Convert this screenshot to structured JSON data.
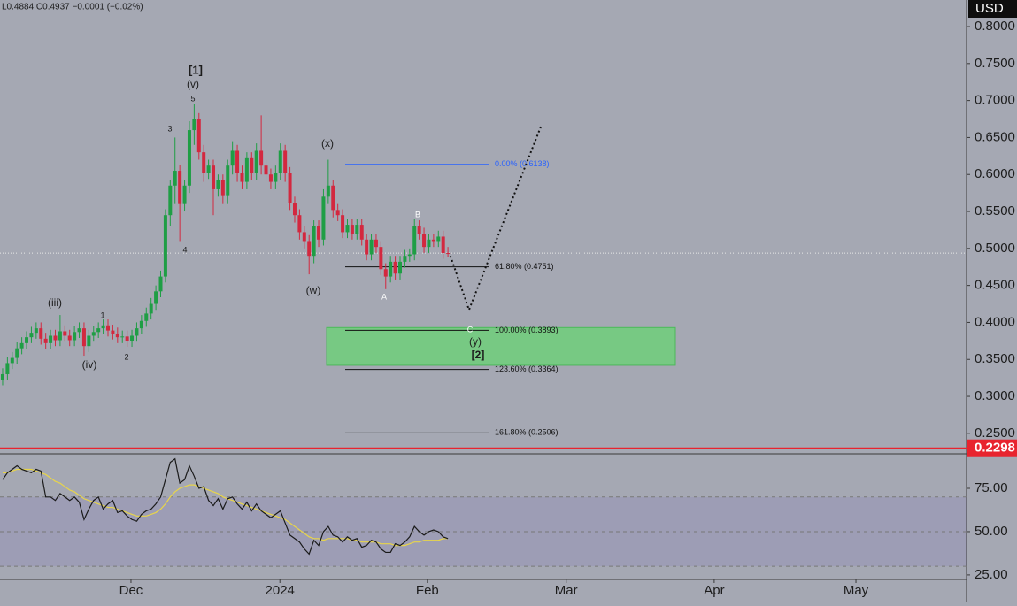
{
  "chart_data": {
    "type": "candlestick",
    "header": "L0.4884  C0.4937  −0.0001 (−0.02%)",
    "currency": "USD",
    "up_color": "#1f9e45",
    "down_color": "#d3283f",
    "xlim": [
      -0.55,
      201.3
    ],
    "xticks": [
      {
        "value": 26.8,
        "label": "Dec"
      },
      {
        "value": 57.9,
        "label": "2024"
      },
      {
        "value": 88.7,
        "label": "Feb"
      },
      {
        "value": 117.7,
        "label": "Mar"
      },
      {
        "value": 148.6,
        "label": "Apr"
      },
      {
        "value": 178.2,
        "label": "May"
      }
    ],
    "ylim": [
      0.2235,
      0.8359
    ],
    "yticks": [
      {
        "value": 0.8,
        "label": "0.8000"
      },
      {
        "value": 0.75,
        "label": "0.7500"
      },
      {
        "value": 0.7,
        "label": "0.7000"
      },
      {
        "value": 0.65,
        "label": "0.6500"
      },
      {
        "value": 0.6,
        "label": "0.6000"
      },
      {
        "value": 0.55,
        "label": "0.5500"
      },
      {
        "value": 0.5,
        "label": "0.5000"
      },
      {
        "value": 0.45,
        "label": "0.4500"
      },
      {
        "value": 0.4,
        "label": "0.4000"
      },
      {
        "value": 0.35,
        "label": "0.3500"
      },
      {
        "value": 0.3,
        "label": "0.3000"
      },
      {
        "value": 0.25,
        "label": "0.2500"
      }
    ],
    "open": [
      0.322,
      0.33,
      0.345,
      0.352,
      0.365,
      0.372,
      0.38,
      0.386,
      0.392,
      0.378,
      0.372,
      0.382,
      0.376,
      0.388,
      0.382,
      0.376,
      0.387,
      0.392,
      0.368,
      0.382,
      0.387,
      0.392,
      0.396,
      0.389,
      0.385,
      0.38,
      0.381,
      0.375,
      0.382,
      0.392,
      0.402,
      0.412,
      0.425,
      0.442,
      0.462,
      0.545,
      0.585,
      0.605,
      0.56,
      0.585,
      0.66,
      0.675,
      0.63,
      0.602,
      0.612,
      0.58,
      0.592,
      0.572,
      0.612,
      0.632,
      0.602,
      0.59,
      0.622,
      0.602,
      0.632,
      0.612,
      0.6,
      0.59,
      0.602,
      0.632,
      0.602,
      0.562,
      0.545,
      0.522,
      0.51,
      0.49,
      0.53,
      0.512,
      0.57,
      0.585,
      0.552,
      0.545,
      0.522,
      0.532,
      0.52,
      0.532,
      0.512,
      0.492,
      0.512,
      0.502,
      0.472,
      0.462,
      0.482,
      0.466,
      0.482,
      0.49,
      0.492,
      0.53,
      0.52,
      0.502,
      0.512,
      0.51,
      0.516,
      0.4938
    ],
    "high": [
      0.338,
      0.353,
      0.36,
      0.373,
      0.38,
      0.388,
      0.394,
      0.4,
      0.4,
      0.386,
      0.39,
      0.39,
      0.41,
      0.396,
      0.39,
      0.395,
      0.4,
      0.4,
      0.39,
      0.395,
      0.4,
      0.404,
      0.404,
      0.397,
      0.393,
      0.389,
      0.389,
      0.39,
      0.4,
      0.41,
      0.42,
      0.433,
      0.45,
      0.47,
      0.553,
      0.593,
      0.65,
      0.613,
      0.593,
      0.672,
      0.695,
      0.683,
      0.64,
      0.62,
      0.62,
      0.6,
      0.6,
      0.62,
      0.645,
      0.64,
      0.612,
      0.63,
      0.63,
      0.642,
      0.68,
      0.62,
      0.608,
      0.612,
      0.642,
      0.64,
      0.61,
      0.57,
      0.553,
      0.53,
      0.518,
      0.538,
      0.538,
      0.58,
      0.62,
      0.593,
      0.56,
      0.553,
      0.54,
      0.54,
      0.54,
      0.54,
      0.52,
      0.52,
      0.52,
      0.51,
      0.48,
      0.49,
      0.49,
      0.49,
      0.498,
      0.5,
      0.54,
      0.538,
      0.528,
      0.52,
      0.52,
      0.524,
      0.524,
      0.502
    ],
    "low": [
      0.315,
      0.322,
      0.337,
      0.344,
      0.357,
      0.364,
      0.372,
      0.378,
      0.37,
      0.364,
      0.364,
      0.368,
      0.368,
      0.374,
      0.368,
      0.368,
      0.379,
      0.355,
      0.36,
      0.374,
      0.379,
      0.384,
      0.381,
      0.377,
      0.372,
      0.372,
      0.367,
      0.367,
      0.374,
      0.384,
      0.394,
      0.404,
      0.417,
      0.434,
      0.454,
      0.53,
      0.56,
      0.51,
      0.55,
      0.575,
      0.64,
      0.62,
      0.59,
      0.594,
      0.545,
      0.57,
      0.56,
      0.56,
      0.6,
      0.59,
      0.58,
      0.58,
      0.592,
      0.592,
      0.6,
      0.59,
      0.58,
      0.58,
      0.592,
      0.59,
      0.552,
      0.535,
      0.512,
      0.5,
      0.465,
      0.48,
      0.502,
      0.504,
      0.56,
      0.542,
      0.537,
      0.514,
      0.514,
      0.512,
      0.512,
      0.504,
      0.484,
      0.484,
      0.494,
      0.464,
      0.445,
      0.454,
      0.458,
      0.458,
      0.474,
      0.482,
      0.484,
      0.512,
      0.494,
      0.494,
      0.502,
      0.502,
      0.486,
      0.4884
    ],
    "close": [
      0.33,
      0.345,
      0.352,
      0.365,
      0.372,
      0.38,
      0.386,
      0.392,
      0.378,
      0.372,
      0.382,
      0.376,
      0.388,
      0.382,
      0.376,
      0.387,
      0.392,
      0.368,
      0.382,
      0.387,
      0.392,
      0.396,
      0.389,
      0.385,
      0.38,
      0.381,
      0.375,
      0.382,
      0.392,
      0.402,
      0.412,
      0.425,
      0.442,
      0.462,
      0.545,
      0.585,
      0.605,
      0.56,
      0.585,
      0.66,
      0.675,
      0.63,
      0.602,
      0.612,
      0.58,
      0.592,
      0.572,
      0.612,
      0.632,
      0.602,
      0.59,
      0.622,
      0.602,
      0.632,
      0.612,
      0.6,
      0.59,
      0.602,
      0.632,
      0.602,
      0.562,
      0.545,
      0.522,
      0.51,
      0.49,
      0.53,
      0.512,
      0.57,
      0.585,
      0.552,
      0.545,
      0.522,
      0.532,
      0.52,
      0.532,
      0.512,
      0.492,
      0.512,
      0.502,
      0.472,
      0.462,
      0.482,
      0.466,
      0.482,
      0.49,
      0.492,
      0.53,
      0.52,
      0.502,
      0.512,
      0.51,
      0.516,
      0.4938,
      0.4937
    ],
    "alert_line": 0.2298,
    "alert_color": "#e8242f",
    "fib": [
      {
        "label": "0.00% (0.6138)",
        "value": 0.6138,
        "color": "#2962ff"
      },
      {
        "label": "61.80% (0.4751)",
        "value": 0.4751,
        "color": "#111111"
      },
      {
        "label": "100.00% (0.3893)",
        "value": 0.3893,
        "color": "#111111"
      },
      {
        "label": "123.60% (0.3364)",
        "value": 0.3364,
        "color": "#111111"
      },
      {
        "label": "161.80% (0.2506)",
        "value": 0.2506,
        "color": "#111111"
      }
    ],
    "zone": {
      "ylim": [
        0.342,
        0.393
      ],
      "color": "#6fcf7a"
    },
    "projection": {
      "x": [
        93.5,
        97.4,
        112.6
      ],
      "y": [
        0.49,
        0.417,
        0.668
      ]
    },
    "annotations": [
      "[1]",
      "(v)",
      "5",
      "3",
      "4",
      "(iii)",
      "1",
      "(iv)",
      "2",
      "(x)",
      "(w)",
      "B",
      "A",
      "C",
      "(y)",
      "[2]"
    ],
    "rsi": {
      "ylim": [
        22.4,
        93.9
      ],
      "yticks": [
        {
          "value": 75,
          "label": "75.00"
        },
        {
          "value": 50,
          "label": "50.00"
        },
        {
          "value": 25,
          "label": "25.00"
        }
      ],
      "bands": [
        70,
        50,
        30
      ],
      "color": "#1a1a1a",
      "ma_color": "#e8d54a",
      "values": [
        80,
        84,
        86,
        88,
        86,
        85,
        84,
        86,
        85,
        70,
        70,
        68,
        72,
        70,
        68,
        70,
        67,
        57,
        63,
        68,
        70,
        63,
        66,
        68,
        61,
        62,
        59,
        57,
        56,
        60,
        62,
        63,
        66,
        70,
        80,
        90,
        92,
        78,
        80,
        88,
        82,
        75,
        76,
        68,
        65,
        69,
        63,
        69,
        70,
        66,
        63,
        67,
        62,
        66,
        62,
        60,
        58,
        60,
        62,
        55,
        48,
        46,
        44,
        40,
        37,
        45,
        42,
        50,
        53,
        48,
        47,
        44,
        47,
        45,
        46,
        41,
        42,
        45,
        44,
        40,
        38,
        38,
        43,
        42,
        44,
        47,
        53,
        50,
        48,
        50,
        51,
        50,
        47,
        46
      ],
      "ma": [
        84,
        84,
        85,
        86,
        86,
        86,
        86,
        85,
        84,
        83,
        81,
        79,
        78,
        76,
        74,
        73,
        71,
        69,
        68,
        67,
        66,
        65,
        64,
        64,
        63,
        62,
        61,
        60,
        59,
        59,
        59,
        60,
        61,
        63,
        66,
        70,
        73,
        75,
        76,
        77,
        77,
        76,
        75,
        74,
        73,
        72,
        70,
        69,
        68,
        67,
        66,
        65,
        64,
        63,
        62,
        61,
        60,
        59,
        58,
        57,
        55,
        53,
        51,
        49,
        47,
        46,
        46,
        45,
        46,
        46,
        46,
        46,
        46,
        45,
        45,
        44,
        44,
        44,
        44,
        43,
        43,
        43,
        42,
        42,
        42,
        43,
        44,
        44,
        45,
        45,
        45,
        45,
        46,
        46
      ]
    }
  }
}
